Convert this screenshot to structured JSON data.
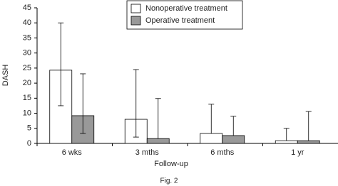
{
  "chart_data": {
    "type": "bar",
    "y_label": "DASH",
    "x_label": "Follow-up",
    "caption": "Fig. 2",
    "categories": [
      "6 wks",
      "3 mths",
      "6 mths",
      "1 yr"
    ],
    "series": [
      {
        "name": "Nonoperative treatment",
        "color": "#ffffff",
        "values": [
          24.3,
          8.0,
          3.3,
          0.9
        ],
        "err_low": [
          12.5,
          2.1,
          null,
          null
        ],
        "err_high": [
          40,
          24.5,
          13,
          5.0
        ]
      },
      {
        "name": "Operative treatment",
        "color": "#999999",
        "values": [
          9.2,
          1.6,
          2.6,
          0.9
        ],
        "err_low": [
          3.3,
          null,
          null,
          null
        ],
        "err_high": [
          23.1,
          14.9,
          9.0,
          10.6
        ]
      }
    ],
    "ylim": [
      0,
      45
    ],
    "yticks": [
      0,
      5,
      10,
      15,
      20,
      25,
      30,
      35,
      40,
      45
    ],
    "grid": false,
    "legend": "top"
  }
}
